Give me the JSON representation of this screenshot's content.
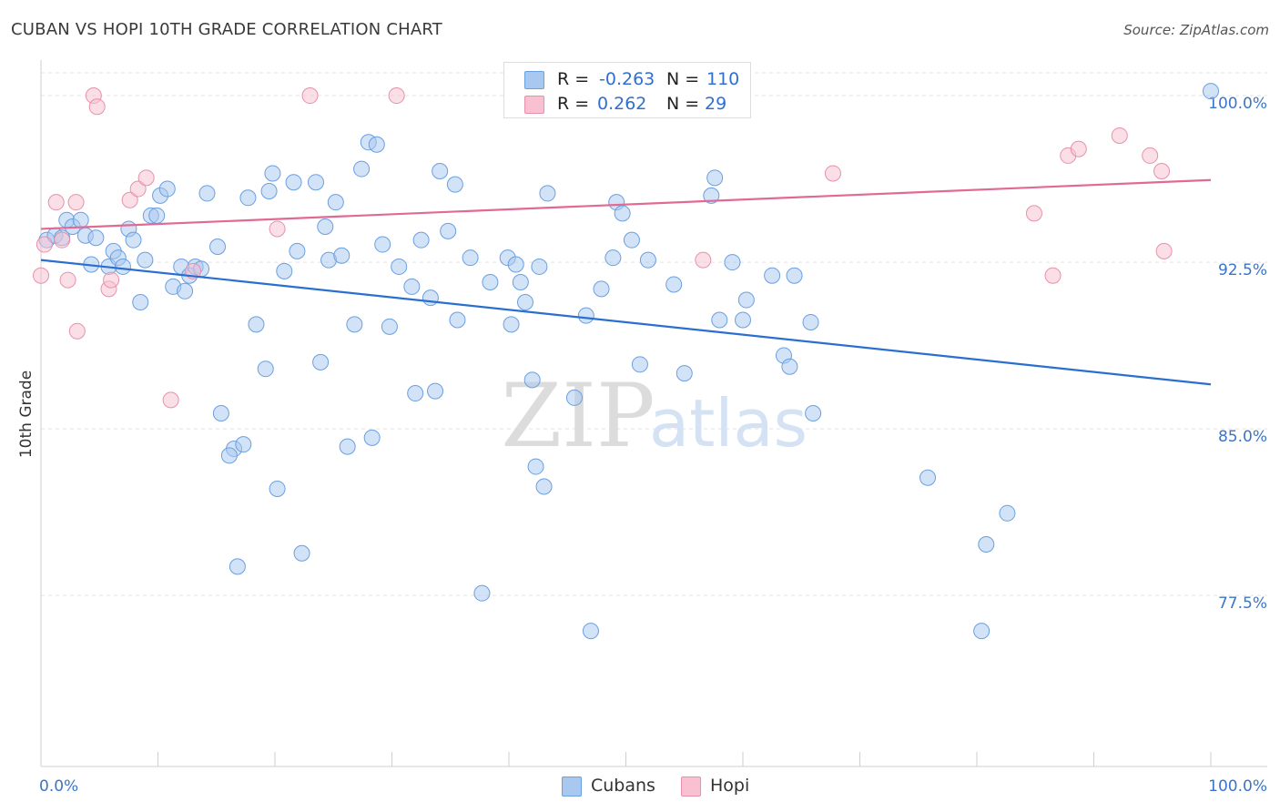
{
  "title": "CUBAN VS HOPI 10TH GRADE CORRELATION CHART",
  "source": "Source: ZipAtlas.com",
  "watermark": {
    "zip": "ZIP",
    "atlas": "atlas"
  },
  "legend": {
    "rows": [
      {
        "r_label": "R =",
        "r_value": "-0.263",
        "n_label": "N =",
        "n_value": "110",
        "color": "#a8c8f0",
        "border": "#6a9fe0"
      },
      {
        "r_label": "R =",
        "r_value": "0.262",
        "n_label": "N =",
        "n_value": "29",
        "color": "#f8c0d0",
        "border": "#e890ab"
      }
    ]
  },
  "bottom_legend": [
    {
      "label": "Cubans",
      "color": "#a8c8f0",
      "border": "#6a9fe0"
    },
    {
      "label": "Hopi",
      "color": "#f8c0d0",
      "border": "#e890ab"
    }
  ],
  "chart_data": {
    "type": "scatter",
    "title": "CUBAN VS HOPI 10TH GRADE CORRELATION CHART",
    "xlabel": "",
    "ylabel": "10th Grade",
    "xlim": [
      0,
      100
    ],
    "ylim": [
      69.8,
      101.6
    ],
    "x_tick_labels": [
      "0.0%",
      "100.0%"
    ],
    "y_ticks": [
      77.5,
      85.0,
      92.5,
      100.0
    ],
    "y_tick_labels": [
      "77.5%",
      "85.0%",
      "92.5%",
      "100.0%"
    ],
    "grid": true,
    "series": [
      {
        "name": "Cubans",
        "color": "#6a9fe0",
        "fill": "#a8c8f0",
        "trend": {
          "x": [
            0,
            100
          ],
          "y": [
            92.6,
            87.0
          ]
        },
        "points": [
          [
            0.5,
            93.5
          ],
          [
            1.2,
            93.7
          ],
          [
            1.8,
            93.6
          ],
          [
            2.2,
            94.4
          ],
          [
            2.7,
            94.1
          ],
          [
            3.4,
            94.4
          ],
          [
            3.8,
            93.7
          ],
          [
            4.3,
            92.4
          ],
          [
            4.7,
            93.6
          ],
          [
            5.8,
            92.3
          ],
          [
            6.2,
            93.0
          ],
          [
            6.6,
            92.7
          ],
          [
            7.0,
            92.3
          ],
          [
            7.5,
            94.0
          ],
          [
            7.9,
            93.5
          ],
          [
            8.5,
            90.7
          ],
          [
            8.9,
            92.6
          ],
          [
            9.4,
            94.6
          ],
          [
            9.9,
            94.6
          ],
          [
            10.2,
            95.5
          ],
          [
            10.8,
            95.8
          ],
          [
            11.3,
            91.4
          ],
          [
            12.0,
            92.3
          ],
          [
            12.3,
            91.2
          ],
          [
            12.7,
            91.9
          ],
          [
            13.2,
            92.3
          ],
          [
            13.7,
            92.2
          ],
          [
            14.2,
            95.6
          ],
          [
            15.1,
            93.2
          ],
          [
            15.4,
            85.7
          ],
          [
            16.5,
            84.1
          ],
          [
            16.1,
            83.8
          ],
          [
            16.8,
            78.8
          ],
          [
            17.3,
            84.3
          ],
          [
            17.7,
            95.4
          ],
          [
            18.4,
            89.7
          ],
          [
            19.2,
            87.7
          ],
          [
            19.5,
            95.7
          ],
          [
            19.8,
            96.5
          ],
          [
            20.2,
            82.3
          ],
          [
            20.8,
            92.1
          ],
          [
            21.6,
            96.1
          ],
          [
            21.9,
            93.0
          ],
          [
            22.3,
            79.4
          ],
          [
            23.5,
            96.1
          ],
          [
            23.9,
            88.0
          ],
          [
            24.3,
            94.1
          ],
          [
            24.6,
            92.6
          ],
          [
            25.2,
            95.2
          ],
          [
            25.7,
            92.8
          ],
          [
            26.2,
            84.2
          ],
          [
            26.8,
            89.7
          ],
          [
            27.4,
            96.7
          ],
          [
            28.0,
            97.9
          ],
          [
            28.3,
            84.6
          ],
          [
            28.7,
            97.8
          ],
          [
            29.2,
            93.3
          ],
          [
            29.8,
            89.6
          ],
          [
            30.6,
            92.3
          ],
          [
            31.7,
            91.4
          ],
          [
            32.0,
            86.6
          ],
          [
            32.5,
            93.5
          ],
          [
            33.3,
            90.9
          ],
          [
            34.1,
            96.6
          ],
          [
            33.7,
            86.7
          ],
          [
            34.8,
            93.9
          ],
          [
            35.4,
            96.0
          ],
          [
            35.6,
            89.9
          ],
          [
            36.7,
            92.7
          ],
          [
            37.7,
            77.6
          ],
          [
            38.4,
            91.6
          ],
          [
            39.9,
            92.7
          ],
          [
            40.2,
            89.7
          ],
          [
            40.6,
            92.4
          ],
          [
            41.0,
            91.6
          ],
          [
            41.4,
            90.7
          ],
          [
            42.0,
            87.2
          ],
          [
            42.3,
            83.3
          ],
          [
            43.0,
            82.4
          ],
          [
            43.3,
            95.6
          ],
          [
            45.6,
            86.4
          ],
          [
            46.6,
            90.1
          ],
          [
            47.0,
            75.9
          ],
          [
            47.9,
            91.3
          ],
          [
            48.9,
            92.7
          ],
          [
            49.2,
            95.2
          ],
          [
            49.7,
            94.7
          ],
          [
            50.5,
            93.5
          ],
          [
            51.2,
            87.9
          ],
          [
            51.9,
            92.6
          ],
          [
            54.1,
            91.5
          ],
          [
            55.0,
            87.5
          ],
          [
            57.3,
            95.5
          ],
          [
            57.6,
            96.3
          ],
          [
            58.0,
            89.9
          ],
          [
            59.1,
            92.5
          ],
          [
            60.0,
            89.9
          ],
          [
            60.3,
            90.8
          ],
          [
            62.5,
            91.9
          ],
          [
            63.5,
            88.3
          ],
          [
            64.0,
            87.8
          ],
          [
            64.4,
            91.9
          ],
          [
            65.8,
            89.8
          ],
          [
            66.0,
            85.7
          ],
          [
            75.8,
            82.8
          ],
          [
            80.8,
            79.8
          ],
          [
            82.6,
            81.2
          ],
          [
            80.4,
            75.9
          ],
          [
            100.0,
            100.2
          ],
          [
            42.6,
            92.3
          ]
        ]
      },
      {
        "name": "Hopi",
        "color": "#e890ab",
        "fill": "#f8c0d0",
        "trend": {
          "x": [
            0,
            100
          ],
          "y": [
            94.0,
            96.2
          ]
        },
        "points": [
          [
            0.0,
            91.9
          ],
          [
            1.3,
            95.2
          ],
          [
            2.3,
            91.7
          ],
          [
            3.0,
            95.2
          ],
          [
            3.1,
            89.4
          ],
          [
            5.8,
            91.3
          ],
          [
            4.5,
            100.0
          ],
          [
            4.8,
            99.5
          ],
          [
            6.0,
            91.7
          ],
          [
            7.6,
            95.3
          ],
          [
            8.3,
            95.8
          ],
          [
            9.0,
            96.3
          ],
          [
            11.1,
            86.3
          ],
          [
            13.0,
            92.1
          ],
          [
            20.2,
            94.0
          ],
          [
            23.0,
            100.0
          ],
          [
            30.4,
            100.0
          ],
          [
            56.6,
            92.6
          ],
          [
            67.7,
            96.5
          ],
          [
            84.9,
            94.7
          ],
          [
            86.5,
            91.9
          ],
          [
            87.8,
            97.3
          ],
          [
            88.7,
            97.6
          ],
          [
            92.2,
            98.2
          ],
          [
            94.8,
            97.3
          ],
          [
            95.8,
            96.6
          ],
          [
            96.0,
            93.0
          ],
          [
            1.8,
            93.5
          ],
          [
            0.3,
            93.3
          ]
        ]
      }
    ]
  }
}
